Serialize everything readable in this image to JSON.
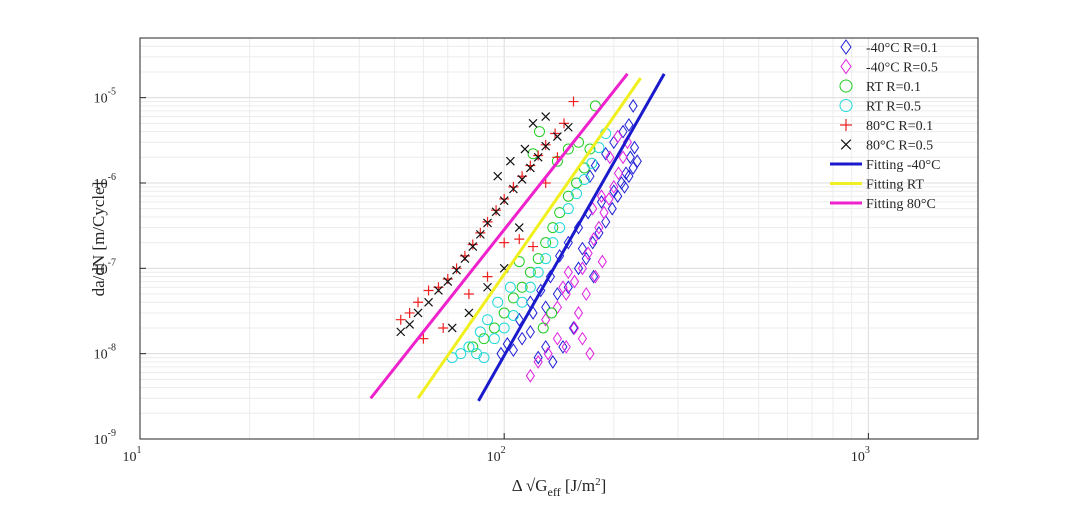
{
  "chart_data": {
    "type": "scatter",
    "title": "",
    "xlabel": {
      "main": "Δ √G",
      "sub": "eff",
      "unit_pre": " [J/m",
      "unit_sup": "2",
      "unit_post": "]"
    },
    "ylabel": "da/dN [m/Cycle]",
    "x_scale": "log",
    "y_scale": "log",
    "xlim": [
      10,
      2000
    ],
    "ylim": [
      1e-09,
      5e-05
    ],
    "grid": true,
    "legend_position": "top-right",
    "x_ticks": [
      {
        "value": 10,
        "base": "10",
        "exp": "1"
      },
      {
        "value": 100,
        "base": "10",
        "exp": "2"
      },
      {
        "value": 1000,
        "base": "10",
        "exp": "3"
      }
    ],
    "y_ticks": [
      {
        "value": 1e-09,
        "base": "10",
        "exp": "-9"
      },
      {
        "value": 1e-08,
        "base": "10",
        "exp": "-8"
      },
      {
        "value": 1e-07,
        "base": "10",
        "exp": "-7"
      },
      {
        "value": 1e-06,
        "base": "10",
        "exp": "-6"
      },
      {
        "value": 1e-05,
        "base": "10",
        "exp": "-5"
      }
    ],
    "series": [
      {
        "name": "-40°C R=0.1",
        "marker": "diamond",
        "color": "#1f1fd6",
        "points": [
          [
            98,
            1e-08
          ],
          [
            102,
            1.3e-08
          ],
          [
            106,
            1.1e-08
          ],
          [
            112,
            1.5e-08
          ],
          [
            118,
            1.8e-08
          ],
          [
            124,
            9e-09
          ],
          [
            130,
            1.2e-08
          ],
          [
            136,
            8e-09
          ],
          [
            110,
            2.5e-08
          ],
          [
            120,
            3e-08
          ],
          [
            130,
            3.5e-08
          ],
          [
            140,
            5e-08
          ],
          [
            150,
            6e-08
          ],
          [
            160,
            1e-07
          ],
          [
            168,
            1.3e-07
          ],
          [
            175,
            2e-07
          ],
          [
            182,
            2.6e-07
          ],
          [
            190,
            3.5e-07
          ],
          [
            198,
            5e-07
          ],
          [
            205,
            7e-07
          ],
          [
            210,
            1e-06
          ],
          [
            216,
            1.3e-06
          ],
          [
            222,
            2e-06
          ],
          [
            228,
            2.6e-06
          ],
          [
            232,
            1.8e-06
          ],
          [
            226,
            1.5e-06
          ],
          [
            220,
            1.2e-06
          ],
          [
            214,
            9e-07
          ],
          [
            200,
            8e-07
          ],
          [
            185,
            6e-07
          ],
          [
            170,
            4.5e-07
          ],
          [
            160,
            3e-07
          ],
          [
            150,
            2e-07
          ],
          [
            142,
            1.4e-07
          ],
          [
            134,
            8e-08
          ],
          [
            126,
            5.5e-08
          ],
          [
            118,
            4e-08
          ],
          [
            200,
            3e-06
          ],
          [
            212,
            4e-06
          ],
          [
            220,
            4.8e-06
          ],
          [
            226,
            8e-06
          ],
          [
            190,
            2.2e-06
          ],
          [
            178,
            1.6e-06
          ],
          [
            172,
            1.2e-06
          ],
          [
            164,
            1.7e-07
          ],
          [
            176,
            8e-08
          ],
          [
            155,
            2e-08
          ],
          [
            145,
            1.2e-08
          ]
        ]
      },
      {
        "name": "-40°C R=0.5",
        "marker": "diamond",
        "color": "#e020e0",
        "points": [
          [
            118,
            5.5e-09
          ],
          [
            124,
            8e-09
          ],
          [
            132,
            1e-08
          ],
          [
            140,
            1.5e-08
          ],
          [
            148,
            1.2e-08
          ],
          [
            156,
            2e-08
          ],
          [
            164,
            1.5e-08
          ],
          [
            172,
            1e-08
          ],
          [
            130,
            2.5e-08
          ],
          [
            140,
            3.5e-08
          ],
          [
            148,
            5e-08
          ],
          [
            156,
            7e-08
          ],
          [
            164,
            1e-07
          ],
          [
            170,
            1.5e-07
          ],
          [
            176,
            2.2e-07
          ],
          [
            182,
            3e-07
          ],
          [
            188,
            4.5e-07
          ],
          [
            194,
            6.5e-07
          ],
          [
            200,
            9e-07
          ],
          [
            206,
            1.3e-06
          ],
          [
            212,
            2e-06
          ],
          [
            218,
            3e-06
          ],
          [
            160,
            3e-08
          ],
          [
            168,
            5e-08
          ],
          [
            178,
            8e-08
          ],
          [
            186,
            1.2e-07
          ],
          [
            150,
            9e-08
          ],
          [
            145,
            6e-08
          ],
          [
            175,
            5e-07
          ],
          [
            185,
            7e-07
          ],
          [
            195,
            2e-06
          ],
          [
            205,
            3.5e-06
          ]
        ]
      },
      {
        "name": "RT R=0.1",
        "marker": "circle",
        "color": "#22cc22",
        "points": [
          [
            82,
            1.2e-08
          ],
          [
            88,
            1.5e-08
          ],
          [
            94,
            2e-08
          ],
          [
            100,
            3e-08
          ],
          [
            106,
            4.5e-08
          ],
          [
            112,
            6e-08
          ],
          [
            118,
            9e-08
          ],
          [
            124,
            1.3e-07
          ],
          [
            130,
            2e-07
          ],
          [
            136,
            3e-07
          ],
          [
            142,
            4.5e-07
          ],
          [
            150,
            7e-07
          ],
          [
            158,
            1e-06
          ],
          [
            166,
            1.5e-06
          ],
          [
            172,
            2.5e-06
          ],
          [
            178,
            8e-06
          ],
          [
            125,
            4e-06
          ],
          [
            120,
            2.2e-06
          ],
          [
            128,
            2e-08
          ],
          [
            135,
            3e-08
          ],
          [
            110,
            1.2e-07
          ],
          [
            140,
            1.8e-06
          ],
          [
            150,
            2.5e-06
          ],
          [
            160,
            3e-06
          ]
        ]
      },
      {
        "name": "RT R=0.5",
        "marker": "circle",
        "color": "#22d8d8",
        "points": [
          [
            72,
            9e-09
          ],
          [
            76,
            1e-08
          ],
          [
            80,
            1.2e-08
          ],
          [
            84,
            1e-08
          ],
          [
            88,
            9e-09
          ],
          [
            94,
            1.5e-08
          ],
          [
            100,
            2e-08
          ],
          [
            106,
            2.8e-08
          ],
          [
            112,
            4e-08
          ],
          [
            118,
            6e-08
          ],
          [
            124,
            9e-08
          ],
          [
            130,
            1.3e-07
          ],
          [
            136,
            2e-07
          ],
          [
            142,
            3e-07
          ],
          [
            150,
            5e-07
          ],
          [
            158,
            7.5e-07
          ],
          [
            166,
            1.1e-06
          ],
          [
            174,
            1.7e-06
          ],
          [
            182,
            2.6e-06
          ],
          [
            190,
            3.8e-06
          ],
          [
            96,
            4e-08
          ],
          [
            104,
            6e-08
          ],
          [
            90,
            2.5e-08
          ],
          [
            86,
            1.8e-08
          ]
        ]
      },
      {
        "name": "80°C R=0.1",
        "marker": "plus",
        "color": "#ee2020",
        "points": [
          [
            52,
            2.5e-08
          ],
          [
            55,
            3e-08
          ],
          [
            58,
            4e-08
          ],
          [
            62,
            5.5e-08
          ],
          [
            66,
            6e-08
          ],
          [
            70,
            7.5e-08
          ],
          [
            74,
            1e-07
          ],
          [
            78,
            1.4e-07
          ],
          [
            82,
            1.9e-07
          ],
          [
            86,
            2.6e-07
          ],
          [
            90,
            3.5e-07
          ],
          [
            95,
            4.8e-07
          ],
          [
            100,
            6.5e-07
          ],
          [
            106,
            9e-07
          ],
          [
            112,
            1.2e-06
          ],
          [
            118,
            1.6e-06
          ],
          [
            124,
            2.1e-06
          ],
          [
            130,
            2.8e-06
          ],
          [
            138,
            3.8e-06
          ],
          [
            146,
            5e-06
          ],
          [
            155,
            9e-06
          ],
          [
            100,
            2e-07
          ],
          [
            110,
            2.2e-07
          ],
          [
            120,
            1.8e-07
          ],
          [
            60,
            1.5e-08
          ],
          [
            68,
            2e-08
          ],
          [
            80,
            5e-08
          ],
          [
            90,
            8e-08
          ],
          [
            130,
            1e-06
          ],
          [
            140,
            2e-06
          ]
        ]
      },
      {
        "name": "80°C R=0.5",
        "marker": "x",
        "color": "#111111",
        "points": [
          [
            52,
            1.8e-08
          ],
          [
            55,
            2.2e-08
          ],
          [
            58,
            3e-08
          ],
          [
            62,
            4e-08
          ],
          [
            66,
            5.5e-08
          ],
          [
            70,
            7e-08
          ],
          [
            74,
            9.5e-08
          ],
          [
            78,
            1.3e-07
          ],
          [
            82,
            1.8e-07
          ],
          [
            86,
            2.5e-07
          ],
          [
            90,
            3.4e-07
          ],
          [
            95,
            4.6e-07
          ],
          [
            100,
            6.2e-07
          ],
          [
            106,
            8.5e-07
          ],
          [
            112,
            1.1e-06
          ],
          [
            118,
            1.5e-06
          ],
          [
            124,
            2e-06
          ],
          [
            130,
            2.7e-06
          ],
          [
            120,
            5e-06
          ],
          [
            130,
            6e-06
          ],
          [
            140,
            3.5e-06
          ],
          [
            150,
            4.5e-06
          ],
          [
            72,
            2e-08
          ],
          [
            80,
            3e-08
          ],
          [
            90,
            6e-08
          ],
          [
            100,
            1e-07
          ],
          [
            110,
            3e-07
          ],
          [
            96,
            1.2e-06
          ],
          [
            104,
            1.8e-06
          ],
          [
            114,
            2.5e-06
          ]
        ]
      }
    ],
    "fit_lines": [
      {
        "name": "Fitting -40°C",
        "color": "#1a1acc",
        "points": [
          [
            85,
            2.8e-09
          ],
          [
            275,
            1.9e-05
          ]
        ]
      },
      {
        "name": "Fitting RT",
        "color": "#f0f020",
        "points": [
          [
            58,
            3e-09
          ],
          [
            237,
            1.7e-05
          ]
        ]
      },
      {
        "name": "Fitting 80°C",
        "color": "#ee22cc",
        "points": [
          [
            43,
            3e-09
          ],
          [
            218,
            1.9e-05
          ]
        ]
      }
    ]
  }
}
